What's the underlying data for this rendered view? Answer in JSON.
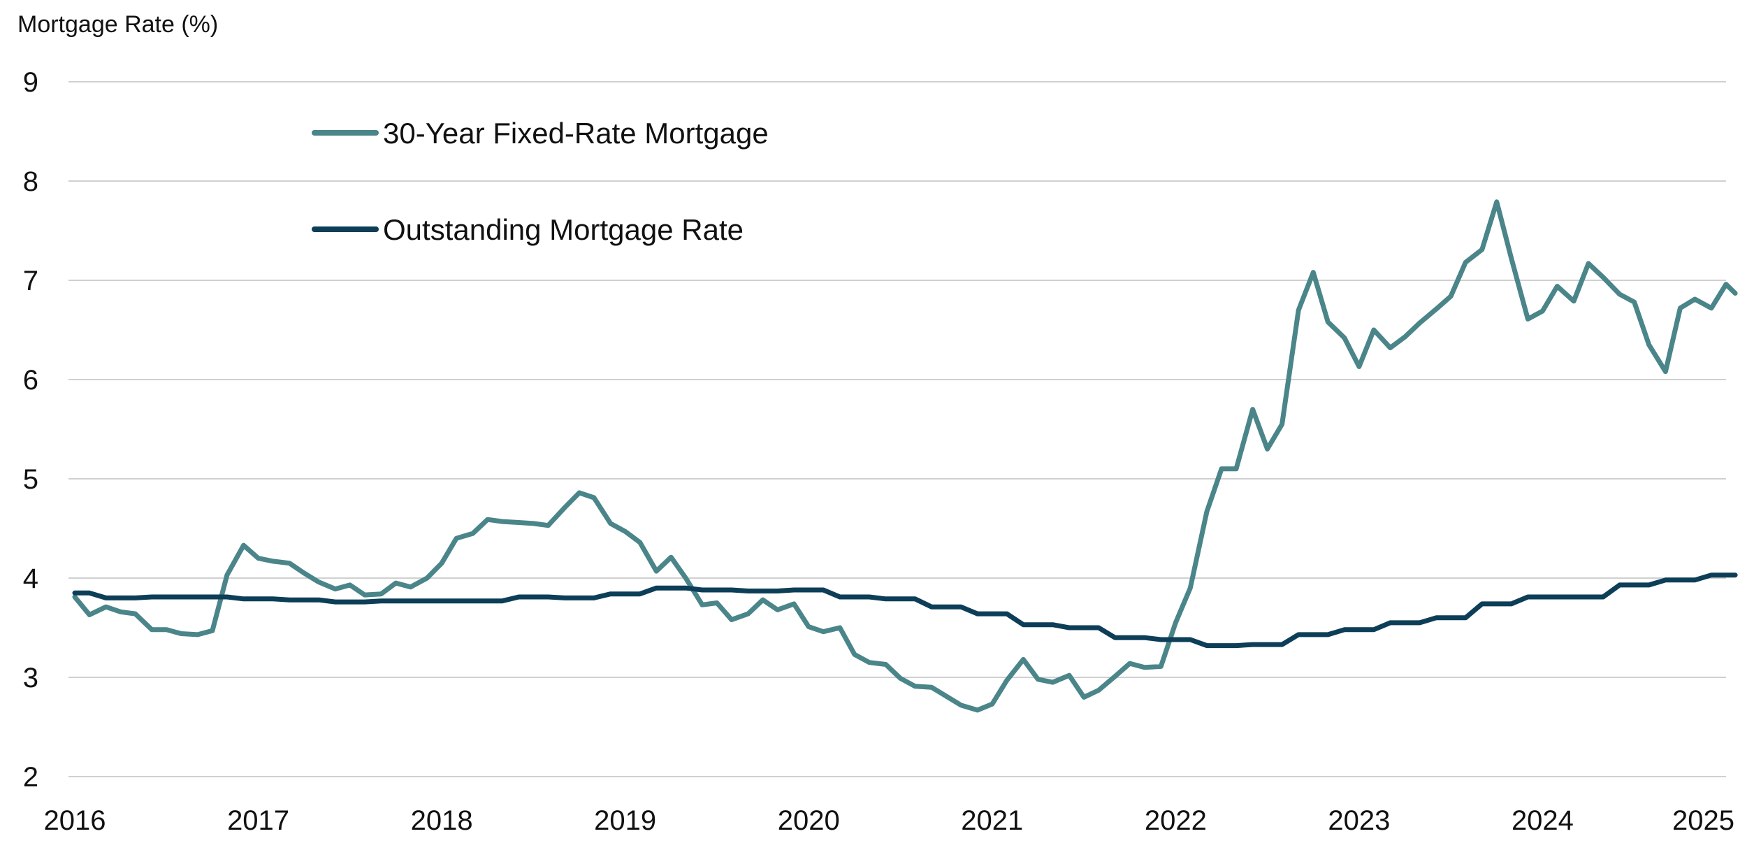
{
  "chart_data": {
    "type": "line",
    "ylabel": "Mortgage Rate (%)",
    "xlabel": "",
    "title": "",
    "ylim": [
      2,
      9
    ],
    "xlim": [
      2016,
      2025
    ],
    "yticks": [
      "2",
      "3",
      "4",
      "5",
      "6",
      "7",
      "8",
      "9"
    ],
    "xticks": [
      "2016",
      "2017",
      "2018",
      "2019",
      "2020",
      "2021",
      "2022",
      "2023",
      "2024",
      "2025"
    ],
    "grid": "horizontal",
    "legend_position": "top-left",
    "series": [
      {
        "name": "30-Year Fixed-Rate Mortgage",
        "color": "#4a8589",
        "points": [
          [
            2016.0,
            3.81
          ],
          [
            2016.08,
            3.63
          ],
          [
            2016.17,
            3.71
          ],
          [
            2016.25,
            3.66
          ],
          [
            2016.33,
            3.64
          ],
          [
            2016.42,
            3.48
          ],
          [
            2016.5,
            3.48
          ],
          [
            2016.58,
            3.44
          ],
          [
            2016.67,
            3.43
          ],
          [
            2016.75,
            3.47
          ],
          [
            2016.83,
            4.03
          ],
          [
            2016.92,
            4.33
          ],
          [
            2017.0,
            4.2
          ],
          [
            2017.08,
            4.17
          ],
          [
            2017.17,
            4.15
          ],
          [
            2017.25,
            4.05
          ],
          [
            2017.33,
            3.96
          ],
          [
            2017.42,
            3.89
          ],
          [
            2017.5,
            3.93
          ],
          [
            2017.58,
            3.83
          ],
          [
            2017.67,
            3.84
          ],
          [
            2017.75,
            3.95
          ],
          [
            2017.83,
            3.91
          ],
          [
            2017.92,
            4.0
          ],
          [
            2018.0,
            4.15
          ],
          [
            2018.08,
            4.4
          ],
          [
            2018.17,
            4.45
          ],
          [
            2018.25,
            4.59
          ],
          [
            2018.33,
            4.57
          ],
          [
            2018.42,
            4.56
          ],
          [
            2018.5,
            4.55
          ],
          [
            2018.58,
            4.53
          ],
          [
            2018.67,
            4.71
          ],
          [
            2018.75,
            4.86
          ],
          [
            2018.83,
            4.81
          ],
          [
            2018.92,
            4.55
          ],
          [
            2019.0,
            4.47
          ],
          [
            2019.08,
            4.36
          ],
          [
            2019.17,
            4.07
          ],
          [
            2019.25,
            4.21
          ],
          [
            2019.33,
            4.0
          ],
          [
            2019.42,
            3.73
          ],
          [
            2019.5,
            3.75
          ],
          [
            2019.58,
            3.58
          ],
          [
            2019.67,
            3.64
          ],
          [
            2019.75,
            3.78
          ],
          [
            2019.83,
            3.68
          ],
          [
            2019.92,
            3.74
          ],
          [
            2020.0,
            3.51
          ],
          [
            2020.08,
            3.46
          ],
          [
            2020.17,
            3.5
          ],
          [
            2020.25,
            3.23
          ],
          [
            2020.33,
            3.15
          ],
          [
            2020.42,
            3.13
          ],
          [
            2020.5,
            2.99
          ],
          [
            2020.58,
            2.91
          ],
          [
            2020.67,
            2.9
          ],
          [
            2020.75,
            2.81
          ],
          [
            2020.83,
            2.72
          ],
          [
            2020.92,
            2.67
          ],
          [
            2021.0,
            2.73
          ],
          [
            2021.08,
            2.97
          ],
          [
            2021.17,
            3.18
          ],
          [
            2021.25,
            2.98
          ],
          [
            2021.33,
            2.95
          ],
          [
            2021.42,
            3.02
          ],
          [
            2021.5,
            2.8
          ],
          [
            2021.58,
            2.87
          ],
          [
            2021.67,
            3.01
          ],
          [
            2021.75,
            3.14
          ],
          [
            2021.83,
            3.1
          ],
          [
            2021.92,
            3.11
          ],
          [
            2022.0,
            3.55
          ],
          [
            2022.08,
            3.9
          ],
          [
            2022.17,
            4.67
          ],
          [
            2022.25,
            5.1
          ],
          [
            2022.33,
            5.1
          ],
          [
            2022.42,
            5.7
          ],
          [
            2022.5,
            5.3
          ],
          [
            2022.58,
            5.55
          ],
          [
            2022.67,
            6.7
          ],
          [
            2022.75,
            7.08
          ],
          [
            2022.83,
            6.58
          ],
          [
            2022.92,
            6.42
          ],
          [
            2023.0,
            6.13
          ],
          [
            2023.08,
            6.5
          ],
          [
            2023.17,
            6.32
          ],
          [
            2023.25,
            6.43
          ],
          [
            2023.33,
            6.57
          ],
          [
            2023.42,
            6.71
          ],
          [
            2023.5,
            6.84
          ],
          [
            2023.58,
            7.18
          ],
          [
            2023.67,
            7.31
          ],
          [
            2023.75,
            7.79
          ],
          [
            2023.83,
            7.22
          ],
          [
            2023.92,
            6.61
          ],
          [
            2024.0,
            6.69
          ],
          [
            2024.08,
            6.94
          ],
          [
            2024.17,
            6.79
          ],
          [
            2024.25,
            7.17
          ],
          [
            2024.33,
            7.03
          ],
          [
            2024.42,
            6.86
          ],
          [
            2024.5,
            6.78
          ],
          [
            2024.58,
            6.35
          ],
          [
            2024.67,
            6.08
          ],
          [
            2024.75,
            6.72
          ],
          [
            2024.83,
            6.81
          ],
          [
            2024.92,
            6.72
          ],
          [
            2025.0,
            6.96
          ],
          [
            2025.05,
            6.87
          ]
        ]
      },
      {
        "name": "Outstanding Mortgage Rate",
        "color": "#0d3e58",
        "points": [
          [
            2016.0,
            3.85
          ],
          [
            2016.08,
            3.85
          ],
          [
            2016.17,
            3.8
          ],
          [
            2016.25,
            3.8
          ],
          [
            2016.33,
            3.8
          ],
          [
            2016.42,
            3.81
          ],
          [
            2016.5,
            3.81
          ],
          [
            2016.58,
            3.81
          ],
          [
            2016.67,
            3.81
          ],
          [
            2016.75,
            3.81
          ],
          [
            2016.83,
            3.81
          ],
          [
            2016.92,
            3.79
          ],
          [
            2017.0,
            3.79
          ],
          [
            2017.08,
            3.79
          ],
          [
            2017.17,
            3.78
          ],
          [
            2017.25,
            3.78
          ],
          [
            2017.33,
            3.78
          ],
          [
            2017.42,
            3.76
          ],
          [
            2017.5,
            3.76
          ],
          [
            2017.58,
            3.76
          ],
          [
            2017.67,
            3.77
          ],
          [
            2017.75,
            3.77
          ],
          [
            2017.83,
            3.77
          ],
          [
            2017.92,
            3.77
          ],
          [
            2018.0,
            3.77
          ],
          [
            2018.08,
            3.77
          ],
          [
            2018.17,
            3.77
          ],
          [
            2018.25,
            3.77
          ],
          [
            2018.33,
            3.77
          ],
          [
            2018.42,
            3.81
          ],
          [
            2018.5,
            3.81
          ],
          [
            2018.58,
            3.81
          ],
          [
            2018.67,
            3.8
          ],
          [
            2018.75,
            3.8
          ],
          [
            2018.83,
            3.8
          ],
          [
            2018.92,
            3.84
          ],
          [
            2019.0,
            3.84
          ],
          [
            2019.08,
            3.84
          ],
          [
            2019.17,
            3.9
          ],
          [
            2019.25,
            3.9
          ],
          [
            2019.33,
            3.9
          ],
          [
            2019.42,
            3.88
          ],
          [
            2019.5,
            3.88
          ],
          [
            2019.58,
            3.88
          ],
          [
            2019.67,
            3.87
          ],
          [
            2019.75,
            3.87
          ],
          [
            2019.83,
            3.87
          ],
          [
            2019.92,
            3.88
          ],
          [
            2020.0,
            3.88
          ],
          [
            2020.08,
            3.88
          ],
          [
            2020.17,
            3.81
          ],
          [
            2020.25,
            3.81
          ],
          [
            2020.33,
            3.81
          ],
          [
            2020.42,
            3.79
          ],
          [
            2020.5,
            3.79
          ],
          [
            2020.58,
            3.79
          ],
          [
            2020.67,
            3.71
          ],
          [
            2020.75,
            3.71
          ],
          [
            2020.83,
            3.71
          ],
          [
            2020.92,
            3.64
          ],
          [
            2021.0,
            3.64
          ],
          [
            2021.08,
            3.64
          ],
          [
            2021.17,
            3.53
          ],
          [
            2021.25,
            3.53
          ],
          [
            2021.33,
            3.53
          ],
          [
            2021.42,
            3.5
          ],
          [
            2021.5,
            3.5
          ],
          [
            2021.58,
            3.5
          ],
          [
            2021.67,
            3.4
          ],
          [
            2021.75,
            3.4
          ],
          [
            2021.83,
            3.4
          ],
          [
            2021.92,
            3.38
          ],
          [
            2022.0,
            3.38
          ],
          [
            2022.08,
            3.38
          ],
          [
            2022.17,
            3.32
          ],
          [
            2022.25,
            3.32
          ],
          [
            2022.33,
            3.32
          ],
          [
            2022.42,
            3.33
          ],
          [
            2022.5,
            3.33
          ],
          [
            2022.58,
            3.33
          ],
          [
            2022.67,
            3.43
          ],
          [
            2022.75,
            3.43
          ],
          [
            2022.83,
            3.43
          ],
          [
            2022.92,
            3.48
          ],
          [
            2023.0,
            3.48
          ],
          [
            2023.08,
            3.48
          ],
          [
            2023.17,
            3.55
          ],
          [
            2023.25,
            3.55
          ],
          [
            2023.33,
            3.55
          ],
          [
            2023.42,
            3.6
          ],
          [
            2023.5,
            3.6
          ],
          [
            2023.58,
            3.6
          ],
          [
            2023.67,
            3.74
          ],
          [
            2023.75,
            3.74
          ],
          [
            2023.83,
            3.74
          ],
          [
            2023.92,
            3.81
          ],
          [
            2024.0,
            3.81
          ],
          [
            2024.08,
            3.81
          ],
          [
            2024.17,
            3.81
          ],
          [
            2024.25,
            3.81
          ],
          [
            2024.33,
            3.81
          ],
          [
            2024.42,
            3.93
          ],
          [
            2024.5,
            3.93
          ],
          [
            2024.58,
            3.93
          ],
          [
            2024.67,
            3.98
          ],
          [
            2024.75,
            3.98
          ],
          [
            2024.83,
            3.98
          ],
          [
            2024.92,
            4.03
          ],
          [
            2025.0,
            4.03
          ],
          [
            2025.05,
            4.03
          ]
        ]
      }
    ]
  }
}
